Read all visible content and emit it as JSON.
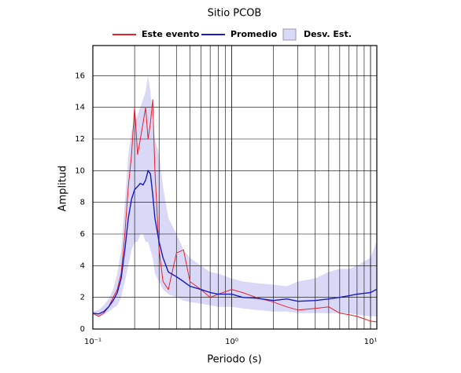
{
  "chart_data": {
    "type": "line",
    "title": "Sitio PCOB",
    "xlabel": "Periodo (s)",
    "ylabel": "Amplitud",
    "x_log": true,
    "grid": true,
    "xlim": [
      0.1,
      11.1
    ],
    "ylim": [
      0,
      17.9
    ],
    "xticks": [
      {
        "value": 0.1,
        "label": "10⁻¹"
      },
      {
        "value": 1,
        "label": "10⁰"
      },
      {
        "value": 10,
        "label": "10¹"
      }
    ],
    "x_minor_grid": [
      0.2,
      0.3,
      0.4,
      0.5,
      0.6,
      0.7,
      0.8,
      0.9,
      2,
      3,
      4,
      5,
      6,
      7,
      8,
      9
    ],
    "yticks": [
      0,
      2,
      4,
      6,
      8,
      10,
      12,
      14,
      16
    ],
    "x": [
      0.1,
      0.11,
      0.12,
      0.13,
      0.14,
      0.15,
      0.16,
      0.17,
      0.18,
      0.19,
      0.2,
      0.21,
      0.22,
      0.23,
      0.24,
      0.25,
      0.26,
      0.27,
      0.28,
      0.3,
      0.32,
      0.35,
      0.4,
      0.45,
      0.5,
      0.6,
      0.7,
      0.8,
      1,
      1.2,
      1.5,
      2,
      2.5,
      3,
      4,
      5,
      6,
      7,
      8,
      10,
      11
    ],
    "series": [
      {
        "name": "Desv. Est.",
        "kind": "band",
        "color": "#d9d9f7",
        "upper": [
          1.1,
          1.2,
          1.5,
          1.9,
          2.5,
          3.5,
          5,
          8,
          11,
          12.5,
          13,
          13.5,
          14,
          14.5,
          15,
          16,
          15,
          13,
          12,
          11,
          9,
          7,
          6,
          5,
          4.5,
          4,
          3.6,
          3.5,
          3.2,
          3,
          2.9,
          2.8,
          2.7,
          3,
          3.2,
          3.6,
          3.8,
          3.8,
          4,
          4.5,
          5.5
        ],
        "lower": [
          0.9,
          0.8,
          0.9,
          1.1,
          1.3,
          1.5,
          2,
          3,
          4,
          5,
          5.5,
          5.5,
          6,
          6,
          5.5,
          5.5,
          5,
          4.5,
          3.5,
          3,
          2.5,
          2.2,
          2,
          1.8,
          1.7,
          1.6,
          1.5,
          1.4,
          1.4,
          1.3,
          1.2,
          1.1,
          1.1,
          1,
          1,
          1,
          1,
          1,
          0.9,
          0.8,
          0.8
        ]
      },
      {
        "name": "Este evento",
        "color": "#e8202a",
        "values": [
          1,
          0.8,
          1,
          1.4,
          2,
          2.5,
          3.5,
          6,
          9,
          11,
          14,
          11,
          12,
          13,
          14,
          12,
          13,
          14.5,
          10,
          5,
          3,
          2.5,
          4.8,
          5,
          3,
          2.5,
          2,
          2.2,
          2.5,
          2.3,
          2,
          1.7,
          1.4,
          1.2,
          1.3,
          1.4,
          1,
          0.9,
          0.8,
          0.5,
          0.45
        ]
      },
      {
        "name": "Promedio",
        "color": "#1a1ac8",
        "values": [
          1,
          0.95,
          1.1,
          1.4,
          1.8,
          2.3,
          3.2,
          5,
          7,
          8.2,
          8.8,
          9,
          9.2,
          9.1,
          9.4,
          10,
          9.8,
          8.5,
          7,
          5.5,
          4.5,
          3.6,
          3.3,
          3,
          2.7,
          2.5,
          2.3,
          2.2,
          2.2,
          2,
          1.95,
          1.8,
          1.9,
          1.75,
          1.8,
          1.9,
          2,
          2.1,
          2.2,
          2.3,
          2.5
        ]
      }
    ]
  }
}
